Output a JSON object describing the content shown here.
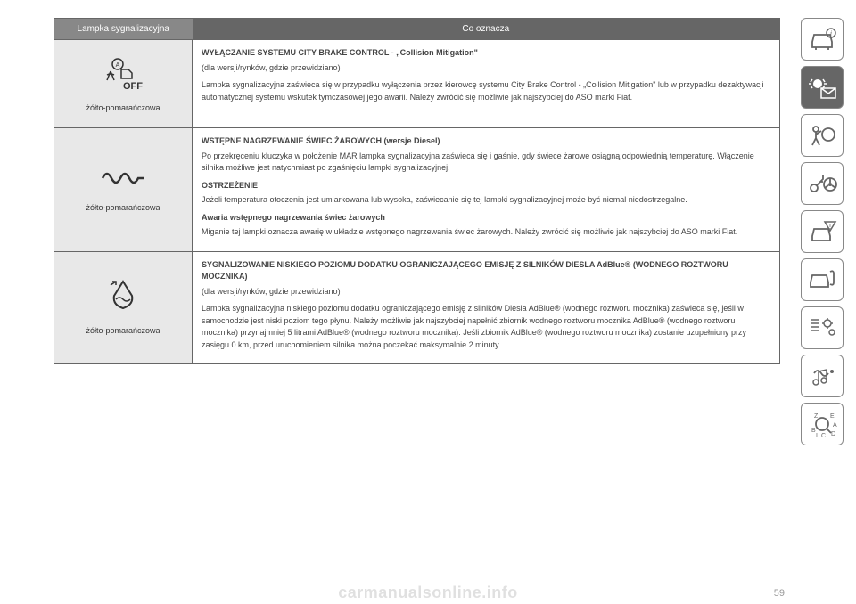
{
  "colors": {
    "header_lamp_bg": "#888888",
    "header_meaning_bg": "#666666",
    "lamp_cell_bg": "#e8e8e8",
    "border": "#666666",
    "text": "#444444",
    "side_active_bg": "#666666",
    "watermark": "rgba(0,0,0,0.12)"
  },
  "table": {
    "headers": {
      "lamp": "Lampka sygnalizacyjna",
      "meaning": "Co oznacza"
    },
    "rows": [
      {
        "icon": "city-brake-off",
        "lamp_label": "żółto-pomarańczowa",
        "sections": [
          {
            "title": "WYŁĄCZANIE SYSTEMU CITY BRAKE CONTROL - „Collision Mitigation\"",
            "subtitle": "(dla wersji/rynków, gdzie przewidziano)",
            "text": "Lampka sygnalizacyjna zaświeca się w przypadku wyłączenia przez kierowcę systemu City Brake Control - „Collision Mitigation\" lub w przypadku dezaktywacji automatycznej systemu wskutek tymczasowej jego awarii. Należy zwrócić się możliwie jak najszybciej do ASO marki Fiat."
          }
        ]
      },
      {
        "icon": "glow-plug",
        "lamp_label": "żółto-pomarańczowa",
        "sections": [
          {
            "title": "WSTĘPNE NAGRZEWANIE ŚWIEC ŻAROWYCH (wersje Diesel)",
            "text": "Po przekręceniu kluczyka w położenie MAR lampka sygnalizacyjna zaświeca się i gaśnie, gdy świece żarowe osiągną odpowiednią temperaturę. Włączenie silnika możliwe jest natychmiast po zgaśnięciu lampki sygnalizacyjnej."
          },
          {
            "title": "OSTRZEŻENIE",
            "text": "Jeżeli temperatura otoczenia jest umiarkowana lub wysoka, zaświecanie się tej lampki sygnalizacyjnej może być niemal niedostrzegalne."
          },
          {
            "title": "Awaria wstępnego nagrzewania świec żarowych",
            "text": "Miganie tej lampki oznacza awarię w układzie wstępnego nagrzewania świec żarowych. Należy zwrócić się możliwie jak najszybciej do ASO marki Fiat."
          }
        ]
      },
      {
        "icon": "adblue",
        "lamp_label": "żółto-pomarańczowa",
        "sections": [
          {
            "title": "SYGNALIZOWANIE NISKIEGO POZIOMU DODATKU OGRANICZAJĄCEGO EMISJĘ Z SILNIKÓW DIESLA AdBlue® (WODNEGO ROZTWORU MOCZNIKA)",
            "subtitle": "(dla wersji/rynków, gdzie przewidziano)",
            "text": "Lampka sygnalizacyjna niskiego poziomu dodatku ograniczającego emisję z silników Diesla AdBlue® (wodnego roztworu mocznika) zaświeca się, jeśli w samochodzie jest niski poziom tego płynu. Należy możliwie jak najszybciej napełnić zbiornik wodnego roztworu mocznika AdBlue® (wodnego roztworu mocznika) przynajmniej 5 litrami AdBlue® (wodnego roztworu mocznika). Jeśli zbiornik AdBlue® (wodnego roztworu mocznika) zostanie uzupełniony przy zasięgu 0 km, przed uruchomieniem silnika można poczekać maksymalnie 2 minuty."
          }
        ]
      }
    ]
  },
  "side_nav": {
    "icons": [
      {
        "name": "car-info",
        "active": false
      },
      {
        "name": "lamp-mail",
        "active": true
      },
      {
        "name": "airbag",
        "active": false
      },
      {
        "name": "key-wheel",
        "active": false
      },
      {
        "name": "car-warning",
        "active": false
      },
      {
        "name": "car-service",
        "active": false
      },
      {
        "name": "settings-gears",
        "active": false
      },
      {
        "name": "nav-audio",
        "active": false
      },
      {
        "name": "index",
        "active": false
      }
    ]
  },
  "footer": {
    "page_number": "59",
    "watermark": "carmanualsonline.info"
  }
}
